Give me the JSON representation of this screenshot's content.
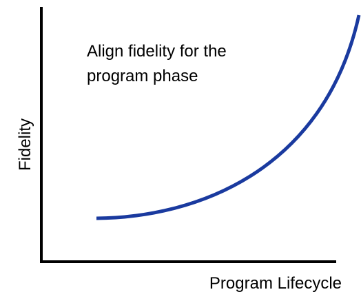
{
  "annotation": {
    "lines": [
      "Align fidelity for the",
      "program phase"
    ]
  },
  "x_axis_label": "Program Lifecycle",
  "y_axis_label": "Fidelity"
}
